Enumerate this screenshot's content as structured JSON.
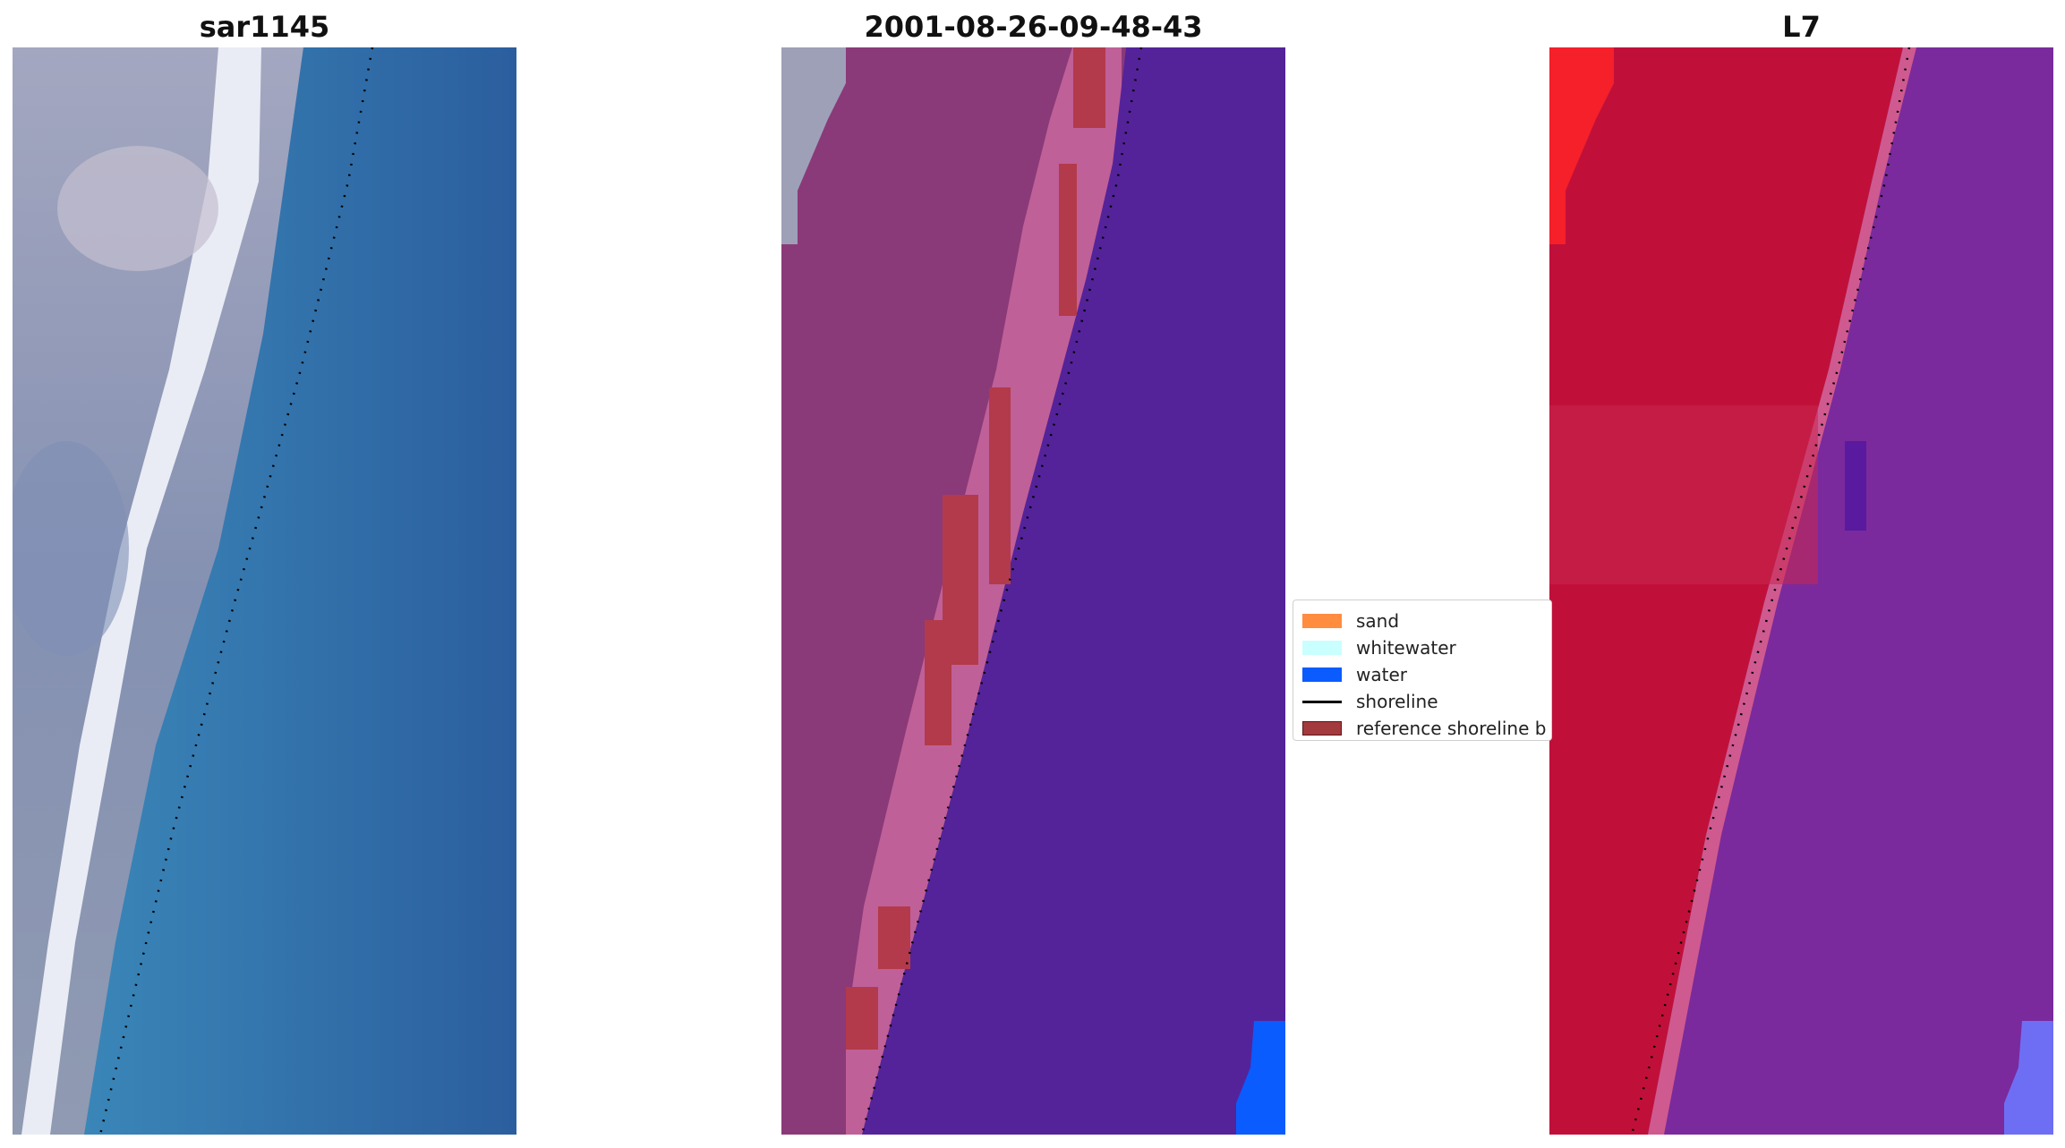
{
  "panels": [
    {
      "title": "sar1145",
      "kind": "rgb"
    },
    {
      "title": "2001-08-26-09-48-43",
      "kind": "classified"
    },
    {
      "title": "L7",
      "kind": "false-color"
    }
  ],
  "legend": {
    "items": [
      {
        "label": "sand",
        "color": "#ff8c3f",
        "style": "patch"
      },
      {
        "label": "whitewater",
        "color": "#c9ffff",
        "style": "patch"
      },
      {
        "label": "water",
        "color": "#0a5cff",
        "style": "patch"
      },
      {
        "label": "shoreline",
        "color": "#000000",
        "style": "line"
      },
      {
        "label": "reference shoreline b",
        "color": "#a23a3e",
        "style": "patch-outlined"
      }
    ]
  },
  "colors": {
    "rgb_land": "#8d97b1",
    "rgb_surf": "#eef0f5",
    "rgb_water": "#2f6fab",
    "class_land": "#8a3a78",
    "class_fringe": "#c06098",
    "class_water": "#54239a",
    "class_buffer": "#b33a4a",
    "class_water_blue": "#0a5cff",
    "l7_land": "#c0103a",
    "l7_land_bright": "#f5202a",
    "l7_water": "#7a2a9c",
    "l7_water_blue": "#6e6ef5"
  }
}
